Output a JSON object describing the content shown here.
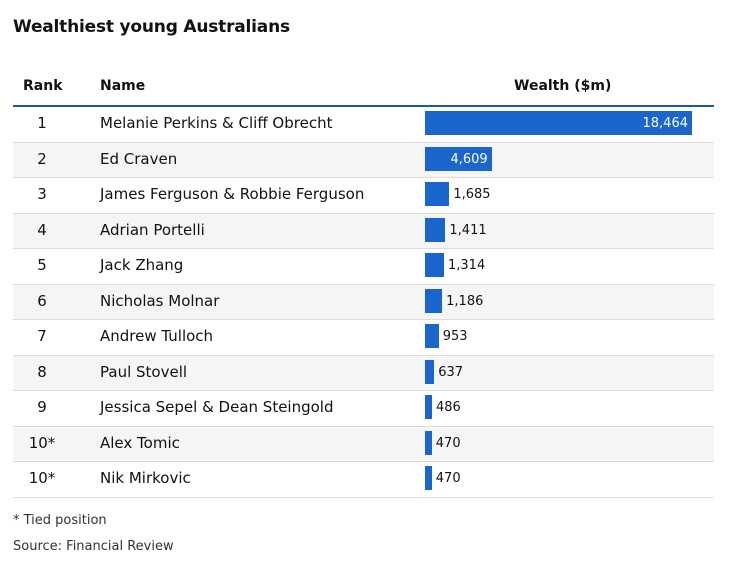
{
  "title": "Wealthiest young Australians",
  "columns": {
    "rank": "Rank",
    "name": "Name",
    "wealth": "Wealth ($m)"
  },
  "rows": [
    {
      "rank": "1",
      "name": "Melanie Perkins & Cliff Obrecht",
      "wealth": "18,464"
    },
    {
      "rank": "2",
      "name": "Ed Craven",
      "wealth": "4,609"
    },
    {
      "rank": "3",
      "name": "James Ferguson & Robbie Ferguson",
      "wealth": "1,685"
    },
    {
      "rank": "4",
      "name": "Adrian Portelli",
      "wealth": "1,411"
    },
    {
      "rank": "5",
      "name": "Jack Zhang",
      "wealth": "1,314"
    },
    {
      "rank": "6",
      "name": "Nicholas Molnar",
      "wealth": "1,186"
    },
    {
      "rank": "7",
      "name": "Andrew Tulloch",
      "wealth": "953"
    },
    {
      "rank": "8",
      "name": "Paul Stovell",
      "wealth": "637"
    },
    {
      "rank": "9",
      "name": "Jessica Sepel & Dean Steingold",
      "wealth": "486"
    },
    {
      "rank": "10*",
      "name": "Alex Tomic",
      "wealth": "470"
    },
    {
      "rank": "10*",
      "name": "Nik Mirkovic",
      "wealth": "470"
    }
  ],
  "footnote": "* Tied position",
  "source": "Source: Financial Review",
  "colors": {
    "bar": "#1a66cc",
    "rule": "#1f5a9e"
  },
  "chart_data": {
    "type": "table",
    "title": "Wealthiest young Australians",
    "columns": [
      "Rank",
      "Name",
      "Wealth ($m)"
    ],
    "categories": [
      "Melanie Perkins & Cliff Obrecht",
      "Ed Craven",
      "James Ferguson & Robbie Ferguson",
      "Adrian Portelli",
      "Jack Zhang",
      "Nicholas Molnar",
      "Andrew Tulloch",
      "Paul Stovell",
      "Jessica Sepel & Dean Steingold",
      "Alex Tomic",
      "Nik Mirkovic"
    ],
    "values": [
      18464,
      4609,
      1685,
      1411,
      1314,
      1186,
      953,
      637,
      486,
      470,
      470
    ],
    "xlim": [
      0,
      18464
    ]
  }
}
